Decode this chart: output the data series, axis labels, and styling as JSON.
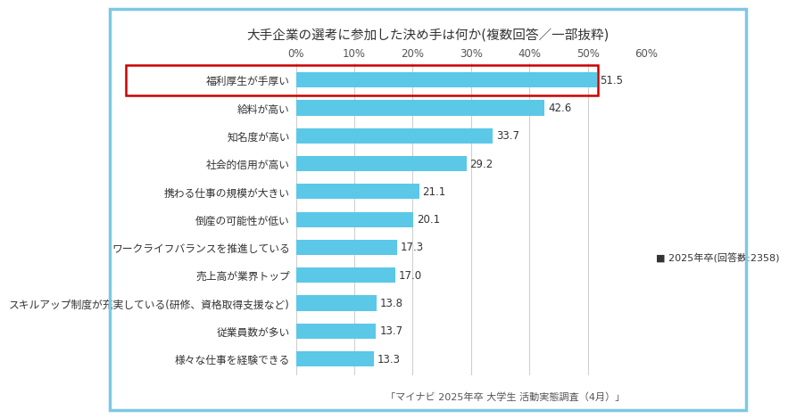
{
  "title": "大手企業の選考に参加した決め手は何か(複数回答／一部抜粋)",
  "categories": [
    "様々な仕事を経験できる",
    "従業員数が多い",
    "スキルアップ制度が充実している(研修、資格取得支援など)",
    "売上高が業界トップ",
    "ワークライフバランスを推進している",
    "倒産の可能性が低い",
    "携わる仕事の規模が大きい",
    "社会的信用が高い",
    "知名度が高い",
    "給料が高い",
    "福利厚生が手厚い"
  ],
  "values": [
    13.3,
    13.7,
    13.8,
    17.0,
    17.3,
    20.1,
    21.1,
    29.2,
    33.7,
    42.6,
    51.5
  ],
  "bar_color": "#5BC8E8",
  "highlight_index": 10,
  "highlight_box_color": "#CC0000",
  "xlim": [
    0,
    60
  ],
  "xticks": [
    0,
    10,
    20,
    30,
    40,
    50,
    60
  ],
  "xtick_labels": [
    "0%",
    "10%",
    "20%",
    "30%",
    "40%",
    "50%",
    "60%"
  ],
  "legend_color": "#4472C4",
  "legend_text": "2025年卒(回答数:2358)",
  "footnote": "「マイナビ 2025年卒 大学生 活動実態調査（4月）」",
  "bg_color": "#FFFFFF",
  "title_bg_color": "#DAF0F7",
  "value_fontsize": 8.5,
  "label_fontsize": 8.5,
  "title_fontsize": 10.5,
  "outer_border_color": "#7EC8E3"
}
